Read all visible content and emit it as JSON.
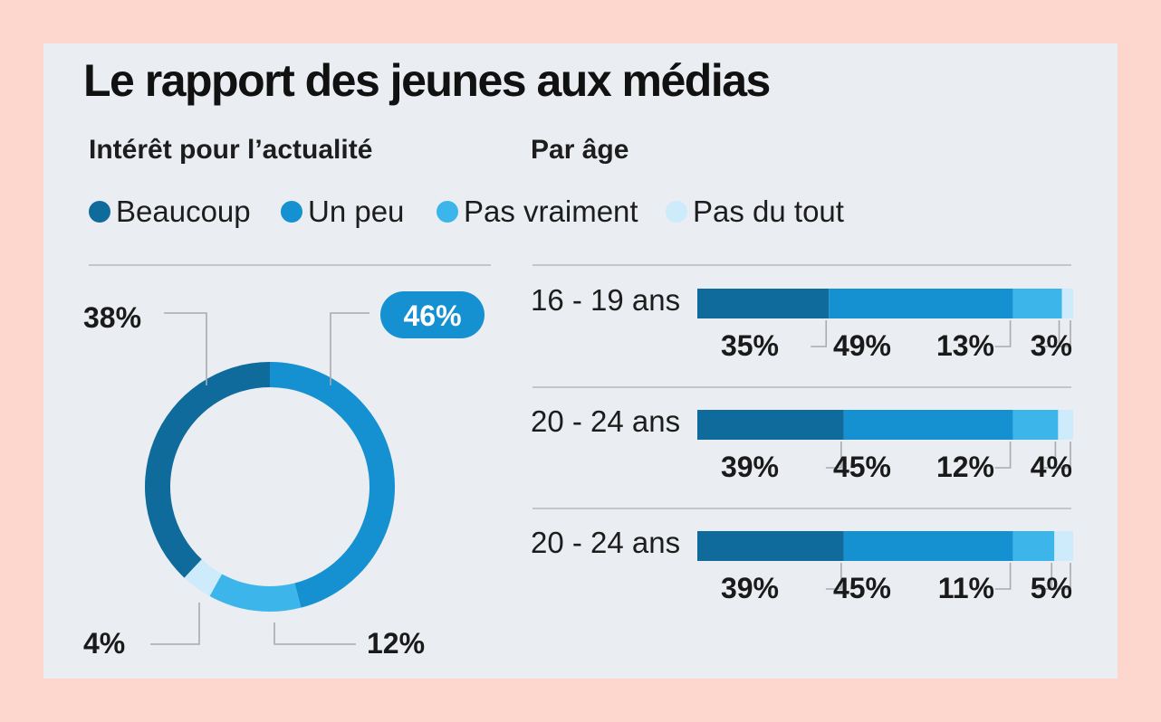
{
  "title": "Le rapport des jeunes aux médias",
  "colors": {
    "beaucoup": "#0e6b9c",
    "un_peu": "#1591d2",
    "pas_vraiment": "#3cb6ea",
    "pas_du_tout": "#cdebfb"
  },
  "chart_data": [
    {
      "type": "pie",
      "subtitle": "Intérêt pour l’actualité",
      "categories": [
        "Beaucoup",
        "Un peu",
        "Pas vraiment",
        "Pas du tout"
      ],
      "values": [
        38,
        46,
        12,
        4
      ],
      "labels": [
        "38%",
        "46%",
        "12%",
        "4%"
      ],
      "highlighted": "Un peu"
    },
    {
      "type": "bar",
      "subtitle": "Par âge",
      "categories": [
        "16 - 19 ans",
        "20 - 24 ans",
        "20 - 24 ans"
      ],
      "series": [
        {
          "name": "Beaucoup",
          "values": [
            35,
            39,
            39
          ]
        },
        {
          "name": "Un peu",
          "values": [
            49,
            45,
            45
          ]
        },
        {
          "name": "Pas vraiment",
          "values": [
            13,
            12,
            11
          ]
        },
        {
          "name": "Pas du tout",
          "values": [
            3,
            4,
            5
          ]
        }
      ],
      "labels": [
        [
          "35%",
          "49%",
          "13%",
          "3%"
        ],
        [
          "39%",
          "45%",
          "12%",
          "4%"
        ],
        [
          "39%",
          "45%",
          "11%",
          "5%"
        ]
      ],
      "stacked": true,
      "xlim": [
        0,
        100
      ]
    }
  ],
  "legend": [
    "Beaucoup",
    "Un peu",
    "Pas vraiment",
    "Pas du tout"
  ]
}
